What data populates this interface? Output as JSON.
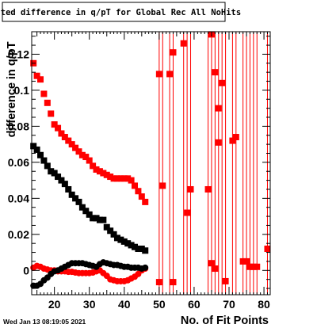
{
  "chart_data": {
    "type": "scatter",
    "title": "Fitted difference in q/pT for Global Rec All NoHits",
    "xlabel": "No. of Fit Points",
    "ylabel": "difference in q/pT",
    "xlim": [
      13.5,
      81.8
    ],
    "ylim": [
      -0.0135,
      0.1325
    ],
    "x_ticks": [
      20,
      30,
      40,
      50,
      60,
      70,
      80
    ],
    "y_ticks": [
      0,
      0.02,
      0.04,
      0.06,
      0.08,
      0.1,
      0.12
    ],
    "x_tick_labels": [
      "20",
      "30",
      "40",
      "50",
      "60",
      "70",
      "80"
    ],
    "y_tick_labels": [
      "0",
      "0.02",
      "0.04",
      "0.06",
      "0.08",
      "0.1",
      "0.12"
    ],
    "grid": false,
    "timestamp": "Wed Jan 13 08:19:05 2021",
    "series": [
      {
        "color": "#ff0000",
        "marker": "square",
        "x": [
          14,
          15,
          16,
          17,
          18,
          19,
          20,
          21,
          22,
          23,
          24,
          25,
          26,
          27,
          28,
          29,
          30,
          31,
          32,
          33,
          34,
          35,
          36,
          37,
          38,
          39,
          40,
          41,
          42,
          43,
          44,
          45,
          46
        ],
        "y": [
          0.115,
          0.108,
          0.106,
          0.098,
          0.093,
          0.087,
          0.081,
          0.079,
          0.076,
          0.074,
          0.072,
          0.07,
          0.068,
          0.066,
          0.064,
          0.063,
          0.061,
          0.058,
          0.056,
          0.055,
          0.054,
          0.053,
          0.052,
          0.051,
          0.051,
          0.051,
          0.051,
          0.051,
          0.05,
          0.047,
          0.044,
          0.041,
          0.038
        ]
      },
      {
        "color": "#000000",
        "marker": "square",
        "x": [
          14,
          15,
          16,
          17,
          18,
          19,
          20,
          21,
          22,
          23,
          24,
          25,
          26,
          27,
          28,
          29,
          30,
          31,
          32,
          33,
          34,
          35,
          36,
          37,
          38,
          39,
          40,
          41,
          42,
          43,
          44,
          45,
          46
        ],
        "y": [
          0.069,
          0.067,
          0.064,
          0.061,
          0.058,
          0.055,
          0.054,
          0.052,
          0.05,
          0.048,
          0.045,
          0.042,
          0.04,
          0.038,
          0.035,
          0.033,
          0.031,
          0.029,
          0.029,
          0.028,
          0.028,
          0.024,
          0.022,
          0.02,
          0.018,
          0.017,
          0.016,
          0.015,
          0.014,
          0.013,
          0.012,
          0.012,
          0.011
        ]
      },
      {
        "color": "#ff0000",
        "marker": "circle",
        "x": [
          14,
          15,
          16,
          17,
          18,
          19,
          20,
          21,
          22,
          23,
          24,
          25,
          26,
          27,
          28,
          29,
          30,
          31,
          32,
          33,
          34,
          35,
          36,
          37,
          38,
          39,
          40,
          41,
          42,
          43,
          44,
          45,
          46
        ],
        "y": [
          0.0015,
          0.0025,
          0.002,
          0.001,
          0.0005,
          0.0,
          0.0,
          -0.0005,
          -0.0005,
          -0.0005,
          -0.0008,
          -0.0008,
          -0.0012,
          -0.0015,
          -0.0015,
          -0.0015,
          -0.0015,
          -0.0012,
          -0.0005,
          0.0,
          -0.0015,
          -0.003,
          -0.005,
          -0.0055,
          -0.006,
          -0.006,
          -0.006,
          -0.0055,
          -0.0045,
          -0.0035,
          -0.002,
          0.0,
          0.001
        ]
      },
      {
        "color": "#000000",
        "marker": "circle",
        "x": [
          14,
          15,
          16,
          17,
          18,
          19,
          20,
          21,
          22,
          23,
          24,
          25,
          26,
          27,
          28,
          29,
          30,
          31,
          32,
          33,
          34,
          35,
          36,
          37,
          38,
          39,
          40,
          41,
          42,
          43,
          44,
          45,
          46
        ],
        "y": [
          -0.0085,
          -0.0085,
          -0.0075,
          -0.0055,
          -0.004,
          -0.002,
          -0.0005,
          0.0,
          0.001,
          0.002,
          0.003,
          0.004,
          0.004,
          0.004,
          0.004,
          0.0035,
          0.003,
          0.0025,
          0.002,
          0.0035,
          0.0045,
          0.004,
          0.0035,
          0.003,
          0.003,
          0.0025,
          0.002,
          0.002,
          0.0015,
          0.0015,
          0.0015,
          0.001,
          0.0015
        ]
      },
      {
        "color": "#ff0000",
        "marker": "square",
        "error_bars": true,
        "x": [
          50,
          51,
          53,
          54,
          57,
          58,
          59,
          64,
          65,
          66,
          67,
          68,
          69,
          71,
          72,
          74,
          75,
          76,
          77,
          78,
          81
        ],
        "y": [
          -0.0065,
          0.047,
          0.109,
          -0.0065,
          0.126,
          0.032,
          0.045,
          0.045,
          0.004,
          0.001,
          0.071,
          0.104,
          -0.006,
          0.072,
          0.074,
          0.005,
          0.005,
          0.002,
          0.002,
          0.002,
          0.012
        ],
        "y_extra": [
          {
            "x": 50,
            "y": 0.109
          },
          {
            "x": 54,
            "y": 0.121
          },
          {
            "x": 65,
            "y": 0.131
          },
          {
            "x": 66,
            "y": 0.11
          },
          {
            "x": 67,
            "y": 0.09
          }
        ]
      }
    ]
  }
}
